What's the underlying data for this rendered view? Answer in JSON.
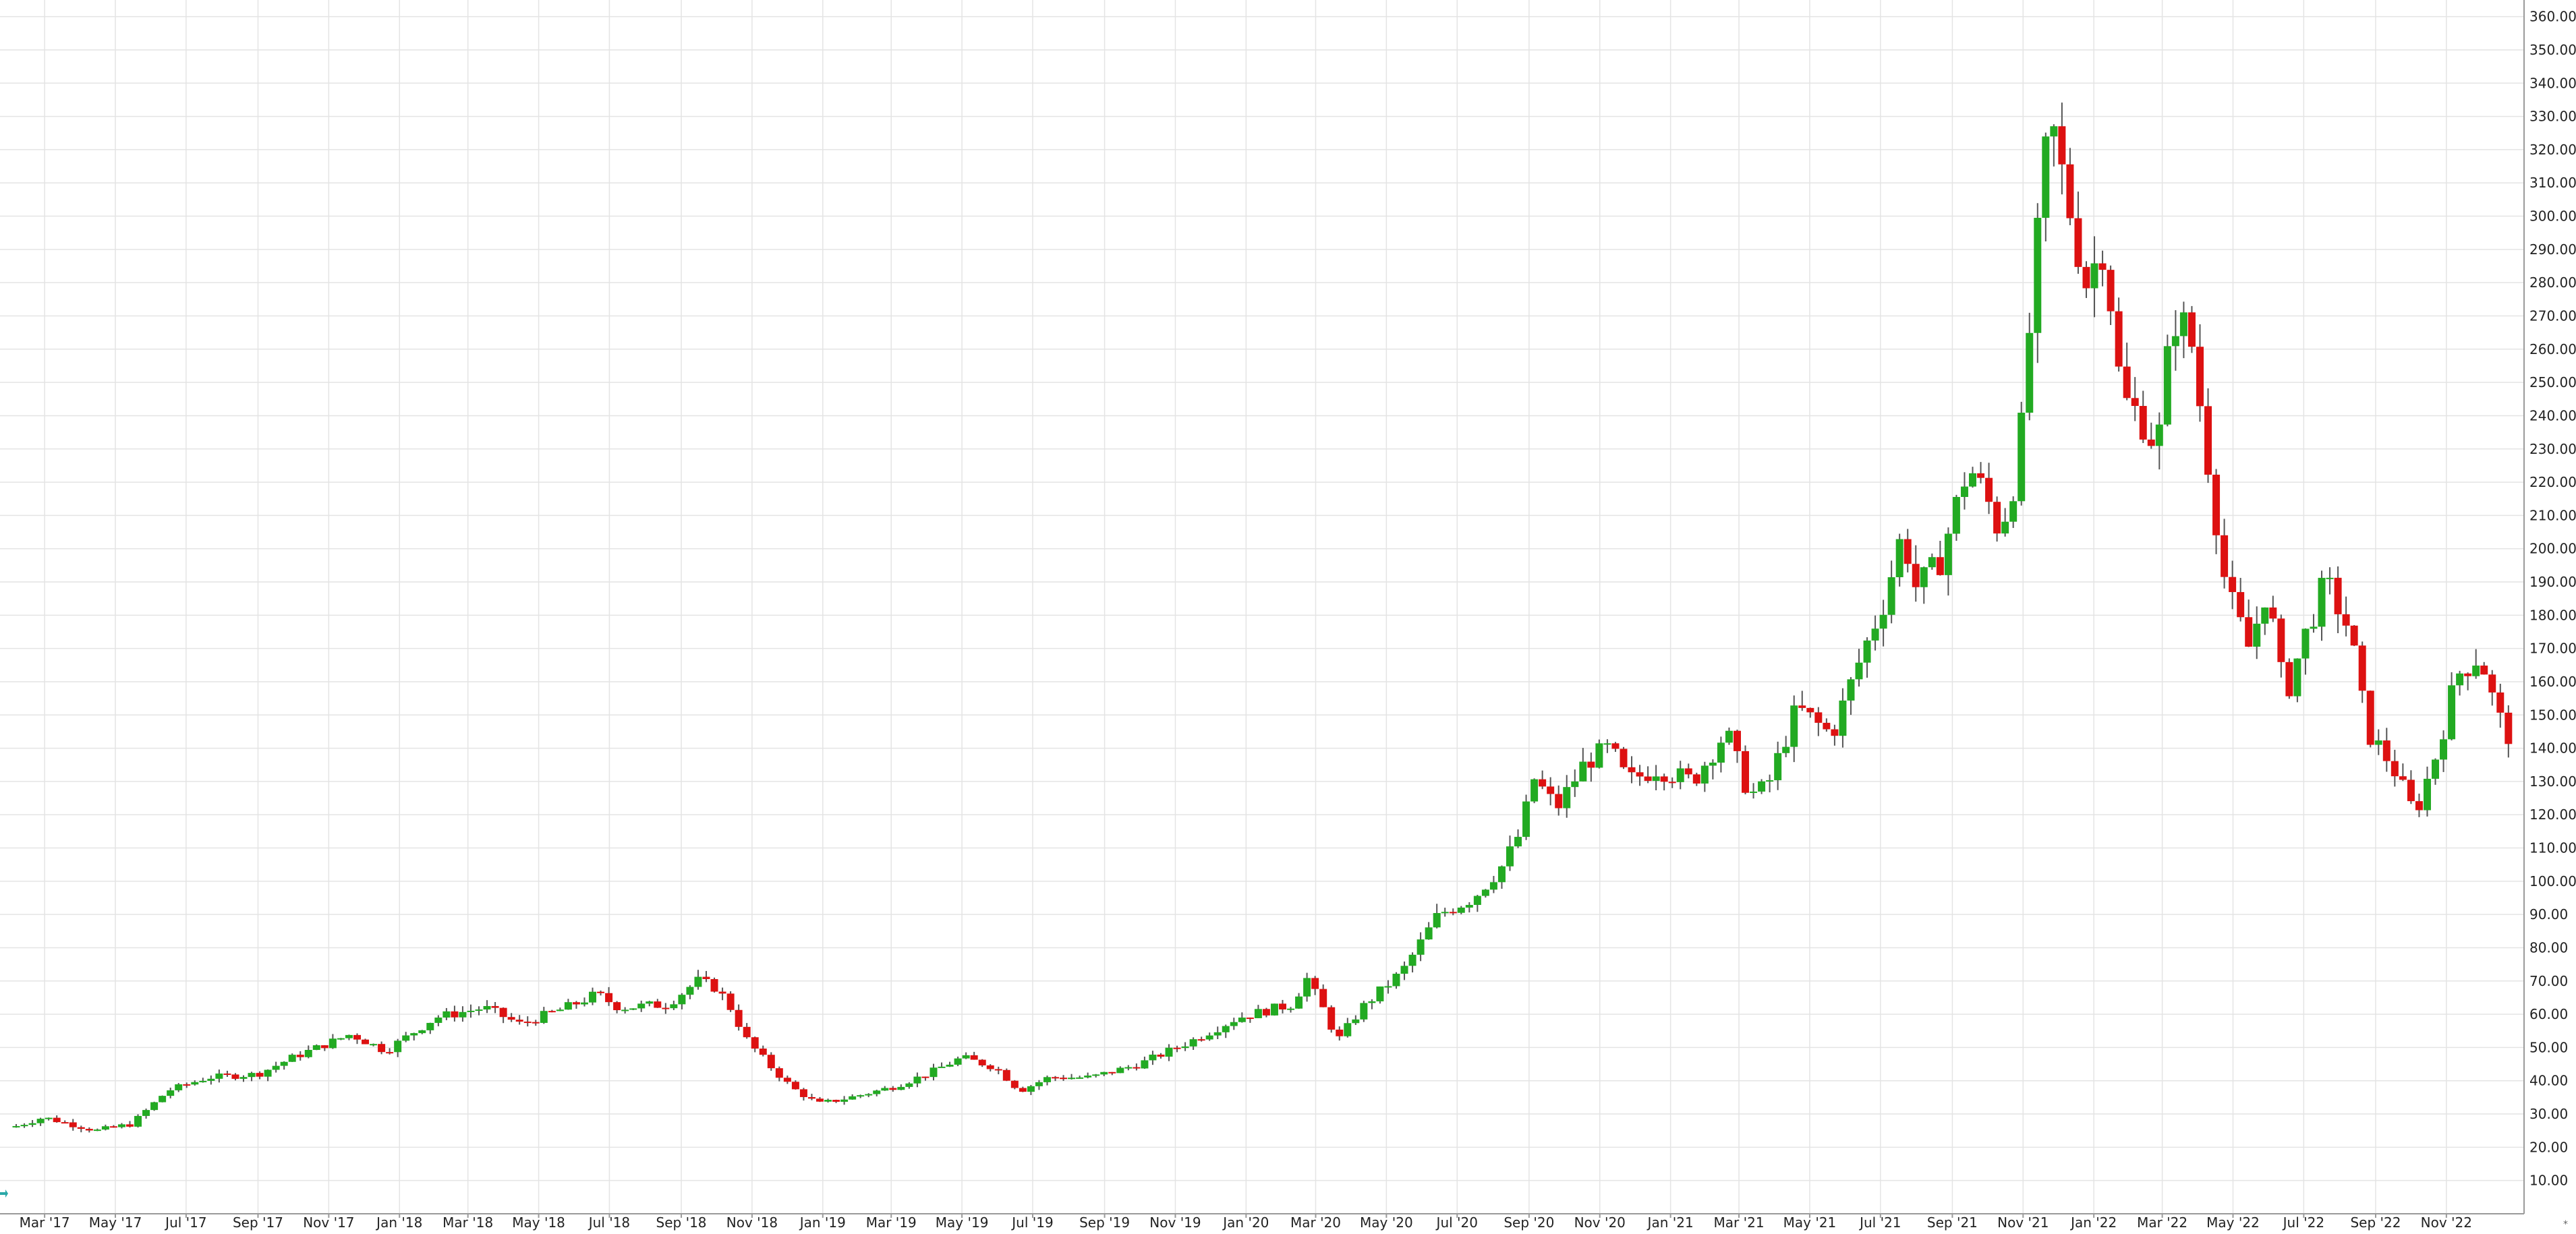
{
  "chart_data": {
    "type": "candlestick",
    "title": "",
    "xlabel": "",
    "ylabel": "",
    "ylim": [
      0,
      365
    ],
    "y_ticks": [
      10,
      20,
      30,
      40,
      50,
      60,
      70,
      80,
      90,
      100,
      110,
      120,
      130,
      140,
      150,
      160,
      170,
      180,
      190,
      200,
      210,
      220,
      230,
      240,
      250,
      260,
      270,
      280,
      290,
      300,
      310,
      320,
      330,
      340,
      350,
      360
    ],
    "y_tick_labels": [
      "10.00",
      "20.00",
      "30.00",
      "40.00",
      "50.00",
      "60.00",
      "70.00",
      "80.00",
      "90.00",
      "100.00",
      "110.00",
      "120.00",
      "130.00",
      "140.00",
      "150.00",
      "160.00",
      "170.00",
      "180.00",
      "190.00",
      "200.00",
      "210.00",
      "220.00",
      "230.00",
      "240.00",
      "250.00",
      "260.00",
      "270.00",
      "280.00",
      "290.00",
      "300.00",
      "310.00",
      "320.00",
      "330.00",
      "340.00",
      "350.00",
      "360.00"
    ],
    "x_range": [
      "2017-02-01",
      "2022-12-31"
    ],
    "x_ticks": [
      {
        "date": "2017-03-01",
        "label": "Mar '17"
      },
      {
        "date": "2017-05-01",
        "label": "May '17"
      },
      {
        "date": "2017-07-01",
        "label": "Jul '17"
      },
      {
        "date": "2017-09-01",
        "label": "Sep '17"
      },
      {
        "date": "2017-11-01",
        "label": "Nov '17"
      },
      {
        "date": "2018-01-01",
        "label": "Jan '18"
      },
      {
        "date": "2018-03-01",
        "label": "Mar '18"
      },
      {
        "date": "2018-05-01",
        "label": "May '18"
      },
      {
        "date": "2018-07-01",
        "label": "Jul '18"
      },
      {
        "date": "2018-09-01",
        "label": "Sep '18"
      },
      {
        "date": "2018-11-01",
        "label": "Nov '18"
      },
      {
        "date": "2019-01-01",
        "label": "Jan '19"
      },
      {
        "date": "2019-03-01",
        "label": "Mar '19"
      },
      {
        "date": "2019-05-01",
        "label": "May '19"
      },
      {
        "date": "2019-07-01",
        "label": "Jul '19"
      },
      {
        "date": "2019-09-01",
        "label": "Sep '19"
      },
      {
        "date": "2019-11-01",
        "label": "Nov '19"
      },
      {
        "date": "2020-01-01",
        "label": "Jan '20"
      },
      {
        "date": "2020-03-01",
        "label": "Mar '20"
      },
      {
        "date": "2020-05-01",
        "label": "May '20"
      },
      {
        "date": "2020-07-01",
        "label": "Jul '20"
      },
      {
        "date": "2020-09-01",
        "label": "Sep '20"
      },
      {
        "date": "2020-11-01",
        "label": "Nov '20"
      },
      {
        "date": "2021-01-01",
        "label": "Jan '21"
      },
      {
        "date": "2021-03-01",
        "label": "Mar '21"
      },
      {
        "date": "2021-05-01",
        "label": "May '21"
      },
      {
        "date": "2021-07-01",
        "label": "Jul '21"
      },
      {
        "date": "2021-09-01",
        "label": "Sep '21"
      },
      {
        "date": "2021-11-01",
        "label": "Nov '21"
      },
      {
        "date": "2022-01-01",
        "label": "Jan '22"
      },
      {
        "date": "2022-03-01",
        "label": "Mar '22"
      },
      {
        "date": "2022-05-01",
        "label": "May '22"
      },
      {
        "date": "2022-07-01",
        "label": "Jul '22"
      },
      {
        "date": "2022-09-01",
        "label": "Sep '22"
      },
      {
        "date": "2022-11-01",
        "label": "Nov '22"
      }
    ],
    "grid": true,
    "up_color": "#22aa22",
    "down_color": "#dd1111",
    "wick_color": "#555555",
    "anchors": [
      [
        "2017-02-01",
        26
      ],
      [
        "2017-02-28",
        29
      ],
      [
        "2017-04-15",
        25
      ],
      [
        "2017-05-15",
        27
      ],
      [
        "2017-06-15",
        37
      ],
      [
        "2017-07-20",
        41
      ],
      [
        "2017-09-01",
        42
      ],
      [
        "2017-10-01",
        47
      ],
      [
        "2017-11-20",
        54
      ],
      [
        "2017-12-20",
        49
      ],
      [
        "2018-02-01",
        59
      ],
      [
        "2018-03-15",
        62
      ],
      [
        "2018-04-15",
        57
      ],
      [
        "2018-05-25",
        62
      ],
      [
        "2018-06-20",
        66
      ],
      [
        "2018-07-10",
        62
      ],
      [
        "2018-08-20",
        63
      ],
      [
        "2018-09-15",
        70
      ],
      [
        "2018-10-01",
        68
      ],
      [
        "2018-10-12",
        63
      ],
      [
        "2018-10-28",
        52
      ],
      [
        "2018-11-15",
        45
      ],
      [
        "2018-12-05",
        38
      ],
      [
        "2018-12-28",
        33
      ],
      [
        "2019-01-25",
        35
      ],
      [
        "2019-03-01",
        38
      ],
      [
        "2019-04-01",
        42
      ],
      [
        "2019-05-01",
        47
      ],
      [
        "2019-05-30",
        44
      ],
      [
        "2019-06-20",
        37
      ],
      [
        "2019-07-15",
        41
      ],
      [
        "2019-08-20",
        41
      ],
      [
        "2019-10-01",
        45
      ],
      [
        "2019-11-15",
        52
      ],
      [
        "2019-12-25",
        59
      ],
      [
        "2020-02-10",
        63
      ],
      [
        "2020-02-22",
        71
      ],
      [
        "2020-03-10",
        60
      ],
      [
        "2020-03-20",
        52
      ],
      [
        "2020-04-10",
        62
      ],
      [
        "2020-05-15",
        73
      ],
      [
        "2020-06-15",
        90
      ],
      [
        "2020-07-15",
        95
      ],
      [
        "2020-08-10",
        105
      ],
      [
        "2020-08-25",
        115
      ],
      [
        "2020-09-05",
        131
      ],
      [
        "2020-09-25",
        122
      ],
      [
        "2020-10-20",
        136
      ],
      [
        "2020-11-10",
        140
      ],
      [
        "2020-11-25",
        130
      ],
      [
        "2020-12-20",
        134
      ],
      [
        "2021-01-20",
        130
      ],
      [
        "2021-02-18",
        145
      ],
      [
        "2021-03-10",
        126
      ],
      [
        "2021-03-25",
        128
      ],
      [
        "2021-04-20",
        152
      ],
      [
        "2021-05-20",
        144
      ],
      [
        "2021-06-15",
        168
      ],
      [
        "2021-07-05",
        185
      ],
      [
        "2021-07-20",
        205
      ],
      [
        "2021-08-01",
        188
      ],
      [
        "2021-08-20",
        195
      ],
      [
        "2021-09-15",
        225
      ],
      [
        "2021-10-01",
        215
      ],
      [
        "2021-10-12",
        205
      ],
      [
        "2021-10-28",
        225
      ],
      [
        "2021-11-10",
        280
      ],
      [
        "2021-11-24",
        330
      ],
      [
        "2021-12-05",
        312
      ],
      [
        "2021-12-25",
        280
      ],
      [
        "2022-01-10",
        292
      ],
      [
        "2022-01-25",
        245
      ],
      [
        "2022-02-10",
        240
      ],
      [
        "2022-02-25",
        230
      ],
      [
        "2022-03-10",
        270
      ],
      [
        "2022-03-25",
        265
      ],
      [
        "2022-04-10",
        225
      ],
      [
        "2022-04-25",
        188
      ],
      [
        "2022-05-15",
        170
      ],
      [
        "2022-05-30",
        188
      ],
      [
        "2022-06-15",
        155
      ],
      [
        "2022-06-30",
        172
      ],
      [
        "2022-07-20",
        190
      ],
      [
        "2022-08-10",
        175
      ],
      [
        "2022-08-25",
        145
      ],
      [
        "2022-09-15",
        135
      ],
      [
        "2022-10-05",
        120
      ],
      [
        "2022-10-25",
        140
      ],
      [
        "2022-11-10",
        162
      ],
      [
        "2022-11-30",
        168
      ],
      [
        "2022-12-15",
        150
      ],
      [
        "2022-12-31",
        140
      ]
    ]
  },
  "corner_mark": "*"
}
